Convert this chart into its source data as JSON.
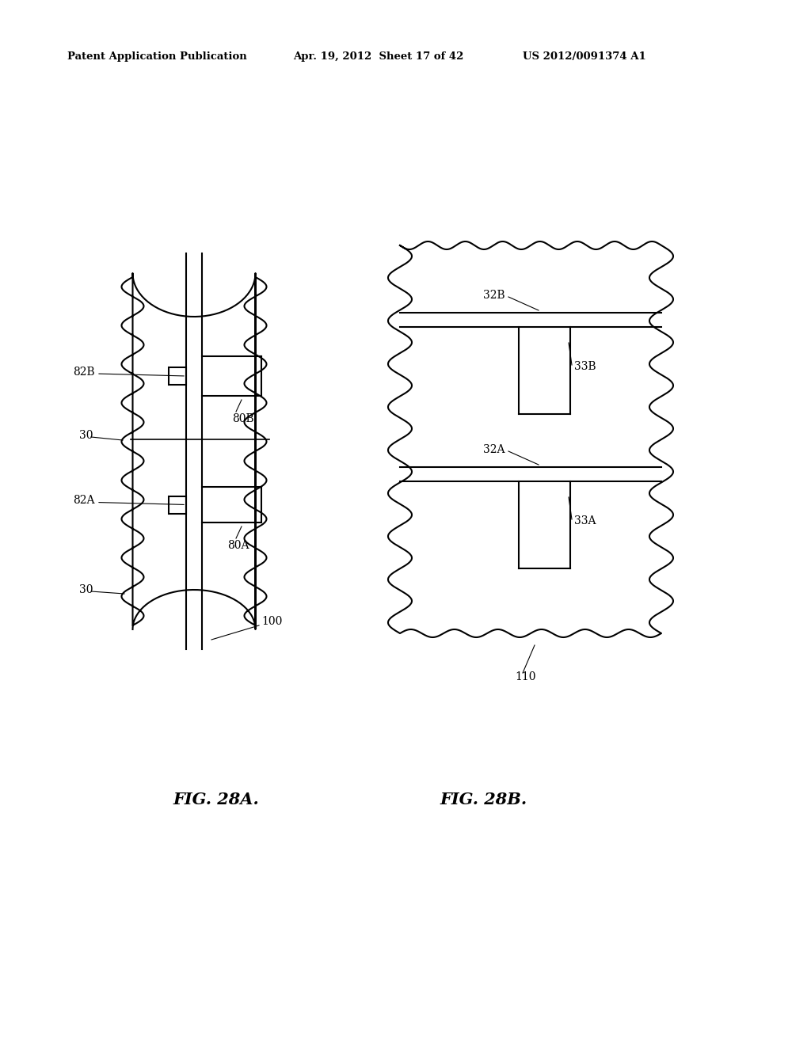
{
  "header_left": "Patent Application Publication",
  "header_mid": "Apr. 19, 2012  Sheet 17 of 42",
  "header_right": "US 2012/0091374 A1",
  "fig_label_a": "FIG. 28A.",
  "fig_label_b": "FIG. 28B.",
  "background_color": "#ffffff",
  "line_color": "#000000"
}
